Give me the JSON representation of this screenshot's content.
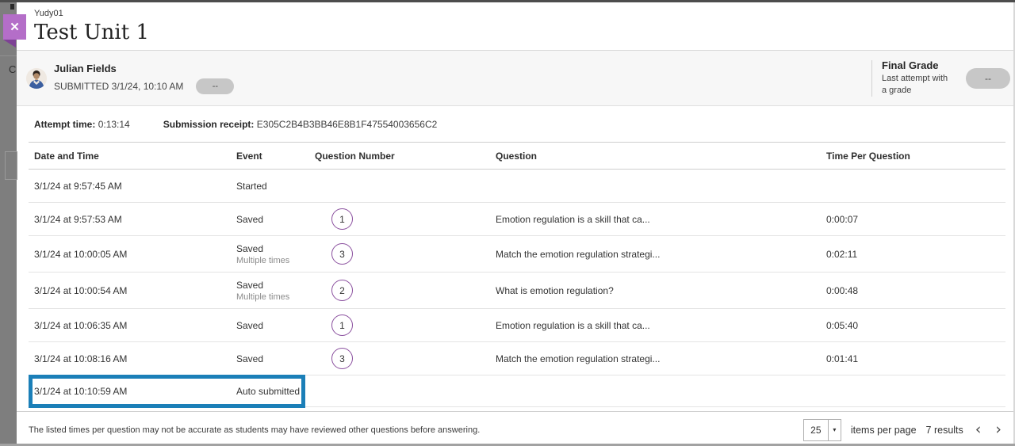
{
  "window": {
    "close_icon": "✕"
  },
  "overlay": {
    "fragment_letter": "C"
  },
  "header": {
    "course_id": "Yudy01",
    "title": "Test Unit 1"
  },
  "student": {
    "name": "Julian Fields",
    "submitted_label": "SUBMITTED 3/1/24, 10:10 AM",
    "grade_pill": "--"
  },
  "final_grade": {
    "title": "Final Grade",
    "subtitle": "Last attempt with a grade",
    "pill": "--"
  },
  "attempt": {
    "time_label": "Attempt time:",
    "time_value": "0:13:14",
    "receipt_label": "Submission receipt:",
    "receipt_value": "E305C2B4B3BB46E8B1F47554003656C2"
  },
  "table": {
    "headers": [
      "Date and Time",
      "Event",
      "Question Number",
      "Question",
      "Time Per Question"
    ],
    "rows": [
      {
        "date": "3/1/24 at 9:57:45 AM",
        "event": "Started",
        "event_sub": "",
        "qnum": "",
        "question": "",
        "time": "",
        "highlighted": false
      },
      {
        "date": "3/1/24 at 9:57:53 AM",
        "event": "Saved",
        "event_sub": "",
        "qnum": "1",
        "question": "Emotion regulation is a skill that ca...",
        "time": "0:00:07",
        "highlighted": false
      },
      {
        "date": "3/1/24 at 10:00:05 AM",
        "event": "Saved",
        "event_sub": "Multiple times",
        "qnum": "3",
        "question": "Match the emotion regulation strategi...",
        "time": "0:02:11",
        "highlighted": false
      },
      {
        "date": "3/1/24 at 10:00:54 AM",
        "event": "Saved",
        "event_sub": "Multiple times",
        "qnum": "2",
        "question": "What is emotion regulation?",
        "time": "0:00:48",
        "highlighted": false
      },
      {
        "date": "3/1/24 at 10:06:35 AM",
        "event": "Saved",
        "event_sub": "",
        "qnum": "1",
        "question": "Emotion regulation is a skill that ca...",
        "time": "0:05:40",
        "highlighted": false
      },
      {
        "date": "3/1/24 at 10:08:16 AM",
        "event": "Saved",
        "event_sub": "",
        "qnum": "3",
        "question": "Match the emotion regulation strategi...",
        "time": "0:01:41",
        "highlighted": false
      },
      {
        "date": "3/1/24 at 10:10:59 AM",
        "event": "Auto submitted",
        "event_sub": "",
        "qnum": "",
        "question": "",
        "time": "",
        "highlighted": true
      }
    ]
  },
  "footer": {
    "note": "The listed times per question may not be accurate as students may have reviewed other questions before answering.",
    "page_size": "25",
    "caret_icon": "▾",
    "items_per_page_label": "items per page",
    "results_label": "7 results",
    "prev_icon": "‹",
    "next_icon": "›"
  },
  "colors": {
    "accent_purple": "#b46ec8",
    "ribbon_fold_purple": "#7e4295",
    "question_circle_purple": "#8a4f9e",
    "highlight_blue": "#1b7fb8",
    "pill_gray": "#c7c7c7",
    "student_bar_gray": "#f7f7f7"
  }
}
